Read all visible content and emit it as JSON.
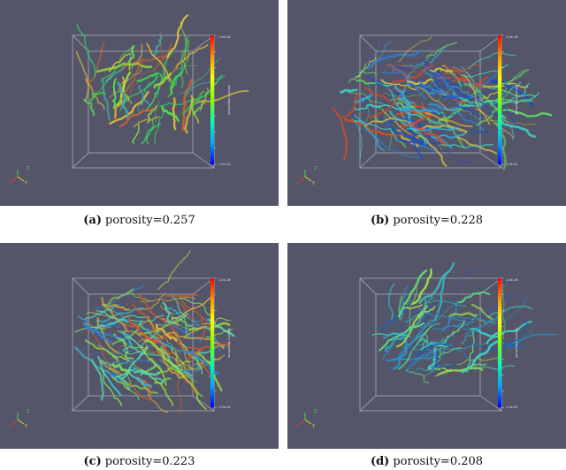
{
  "panels": [
    {
      "letter": "(a)",
      "caption": "porosity=0.257",
      "colorbar": {
        "top_label": "1.0e-16",
        "bottom_label": "1.0e-24",
        "title": "Velocity magnitude"
      },
      "palette": [
        "#3ddc3d",
        "#55e94b",
        "#98e23a",
        "#2fcf6a",
        "#e6c437",
        "#d8642e",
        "#3ab2a6"
      ],
      "density": 0.75
    },
    {
      "letter": "(b)",
      "caption": "porosity=0.228",
      "colorbar": {
        "top_label": "1.0e-16",
        "bottom_label": "1.0e-24",
        "title": "Velocity magnitude"
      },
      "palette": [
        "#2a7fd6",
        "#33a8d8",
        "#3fd0c4",
        "#1e4fbf",
        "#5fdc6a",
        "#e0c23c",
        "#d44c2a"
      ],
      "density": 1.0
    },
    {
      "letter": "(c)",
      "caption": "porosity=0.223",
      "colorbar": {
        "top_label": "1.0e-16",
        "bottom_label": "1.0e-24",
        "title": "Velocity magnitude"
      },
      "palette": [
        "#3bbfd0",
        "#54d8b0",
        "#82e05a",
        "#e0b238",
        "#d8582c",
        "#2e7fd0",
        "#9be23d"
      ],
      "density": 1.0
    },
    {
      "letter": "(d)",
      "caption": "porosity=0.208",
      "colorbar": {
        "top_label": "1.0e-16",
        "bottom_label": "1.0e-24",
        "title": "Velocity magnitude"
      },
      "palette": [
        "#2fb3c8",
        "#3dd0c0",
        "#278fc9",
        "#5fda7a",
        "#1d5db8",
        "#9ee04a"
      ],
      "density": 0.8
    }
  ],
  "colors": {
    "background": "#545568",
    "box": "#c8c8d0",
    "axis_x": "#e04040",
    "axis_y": "#e0e040",
    "axis_z": "#40e040"
  }
}
